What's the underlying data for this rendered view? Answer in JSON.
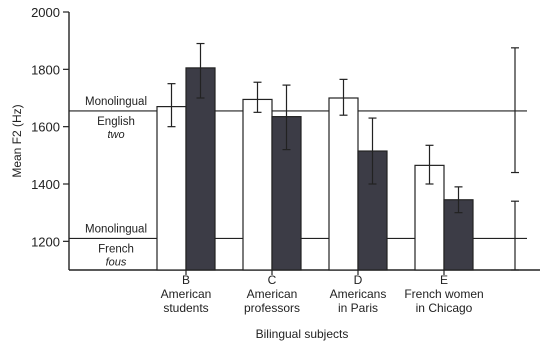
{
  "chart_data": {
    "type": "bar",
    "title": "",
    "xlabel": "Bilingual subjects",
    "ylabel": "Mean F2 (Hz)",
    "ylim": [
      1100,
      2000
    ],
    "yticks": [
      1200,
      1400,
      1600,
      1800,
      2000
    ],
    "grid": false,
    "colors": {
      "white_bar": "#ffffff",
      "dark_bar": "#3c3c46",
      "axis": "#222222"
    },
    "categories": [
      {
        "letter": "B",
        "line1": "American",
        "line2": "students"
      },
      {
        "letter": "C",
        "line1": "American",
        "line2": "professors"
      },
      {
        "letter": "D",
        "line1": "Americans",
        "line2": "in Paris"
      },
      {
        "letter": "E",
        "line1": "French women",
        "line2": "in Chicago"
      }
    ],
    "series": [
      {
        "style": "white",
        "values": [
          1670,
          1695,
          1700,
          1465
        ],
        "err_low": [
          1600,
          1650,
          1640,
          1400
        ],
        "err_high": [
          1750,
          1755,
          1765,
          1535
        ]
      },
      {
        "style": "dark",
        "values": [
          1805,
          1635,
          1515,
          1345
        ],
        "err_low": [
          1700,
          1520,
          1400,
          1300
        ],
        "err_high": [
          1890,
          1745,
          1630,
          1390
        ]
      }
    ],
    "reference_lines": [
      {
        "line1": "Monolingual",
        "line2": "English",
        "word": "two",
        "value": 1655,
        "err_low": 1440,
        "err_high": 1875
      },
      {
        "line1": "Monolingual",
        "line2": "French",
        "word": "fous",
        "value": 1210,
        "err_low": 1100,
        "err_high": 1340
      }
    ]
  }
}
